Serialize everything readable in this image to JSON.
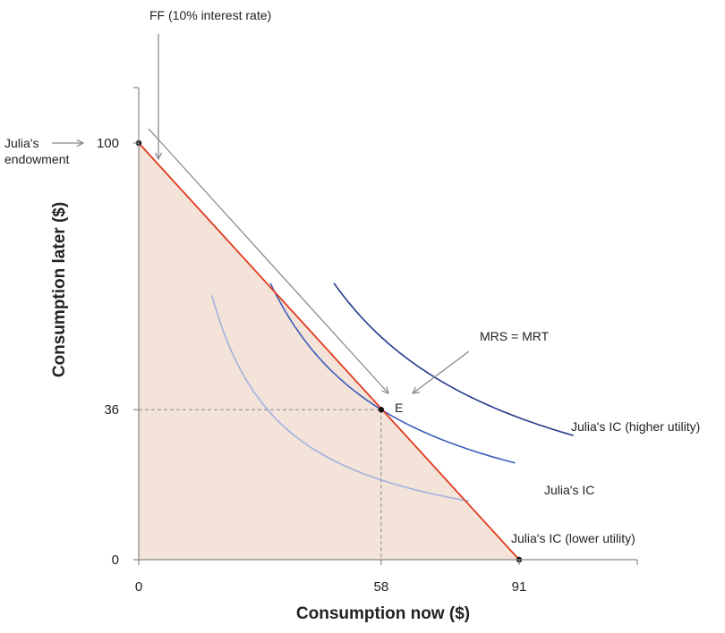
{
  "chart_data": {
    "type": "line",
    "title": "",
    "xlabel": "Consumption now ($)",
    "ylabel": "Consumption later ($)",
    "xlim": [
      0,
      120
    ],
    "ylim": [
      0,
      115
    ],
    "x_ticks": [
      {
        "value": 0,
        "label": "0"
      },
      {
        "value": 58,
        "label": "58"
      },
      {
        "value": 91,
        "label": "91"
      }
    ],
    "y_ticks": [
      {
        "value": 0,
        "label": "0"
      },
      {
        "value": 36,
        "label": "36"
      },
      {
        "value": 100,
        "label": "100"
      }
    ],
    "feasible_frontier": {
      "name": "FF (10% interest rate)",
      "color": "#e03a1e",
      "fill": "#f4e3d9",
      "points": [
        [
          0,
          100
        ],
        [
          91,
          0
        ]
      ]
    },
    "endowment": {
      "x": 0,
      "y": 100,
      "label": "Julia's endowment"
    },
    "optimum": {
      "x": 58,
      "y": 36,
      "label": "E",
      "annotation": "MRS = MRT"
    },
    "indifference_curves": [
      {
        "name": "Julia's IC (lower utility)",
        "color": "#a3b1e0",
        "k": 1110,
        "x_range": [
          17.5,
          79
        ]
      },
      {
        "name": "Julia's IC",
        "color": "#3d5db8",
        "k": 2090,
        "x_range": [
          31.5,
          90
        ]
      },
      {
        "name": "Julia's IC (higher utility)",
        "color": "#243a8a",
        "k": 3100,
        "x_range": [
          46.7,
          104
        ]
      }
    ]
  },
  "labels": {
    "ff": "FF (10% interest rate)",
    "endowment_line1": "Julia's",
    "endowment_line2": "endowment",
    "mrs": "MRS = MRT",
    "point_e": "E",
    "ic_high": "Julia's IC (higher utility)",
    "ic_mid": "Julia's IC",
    "ic_low": "Julia's IC (lower utility)"
  },
  "colors": {
    "axis": "#888888",
    "arrow": "#8a8a8a",
    "dashed": "#888888",
    "text": "#222222"
  }
}
